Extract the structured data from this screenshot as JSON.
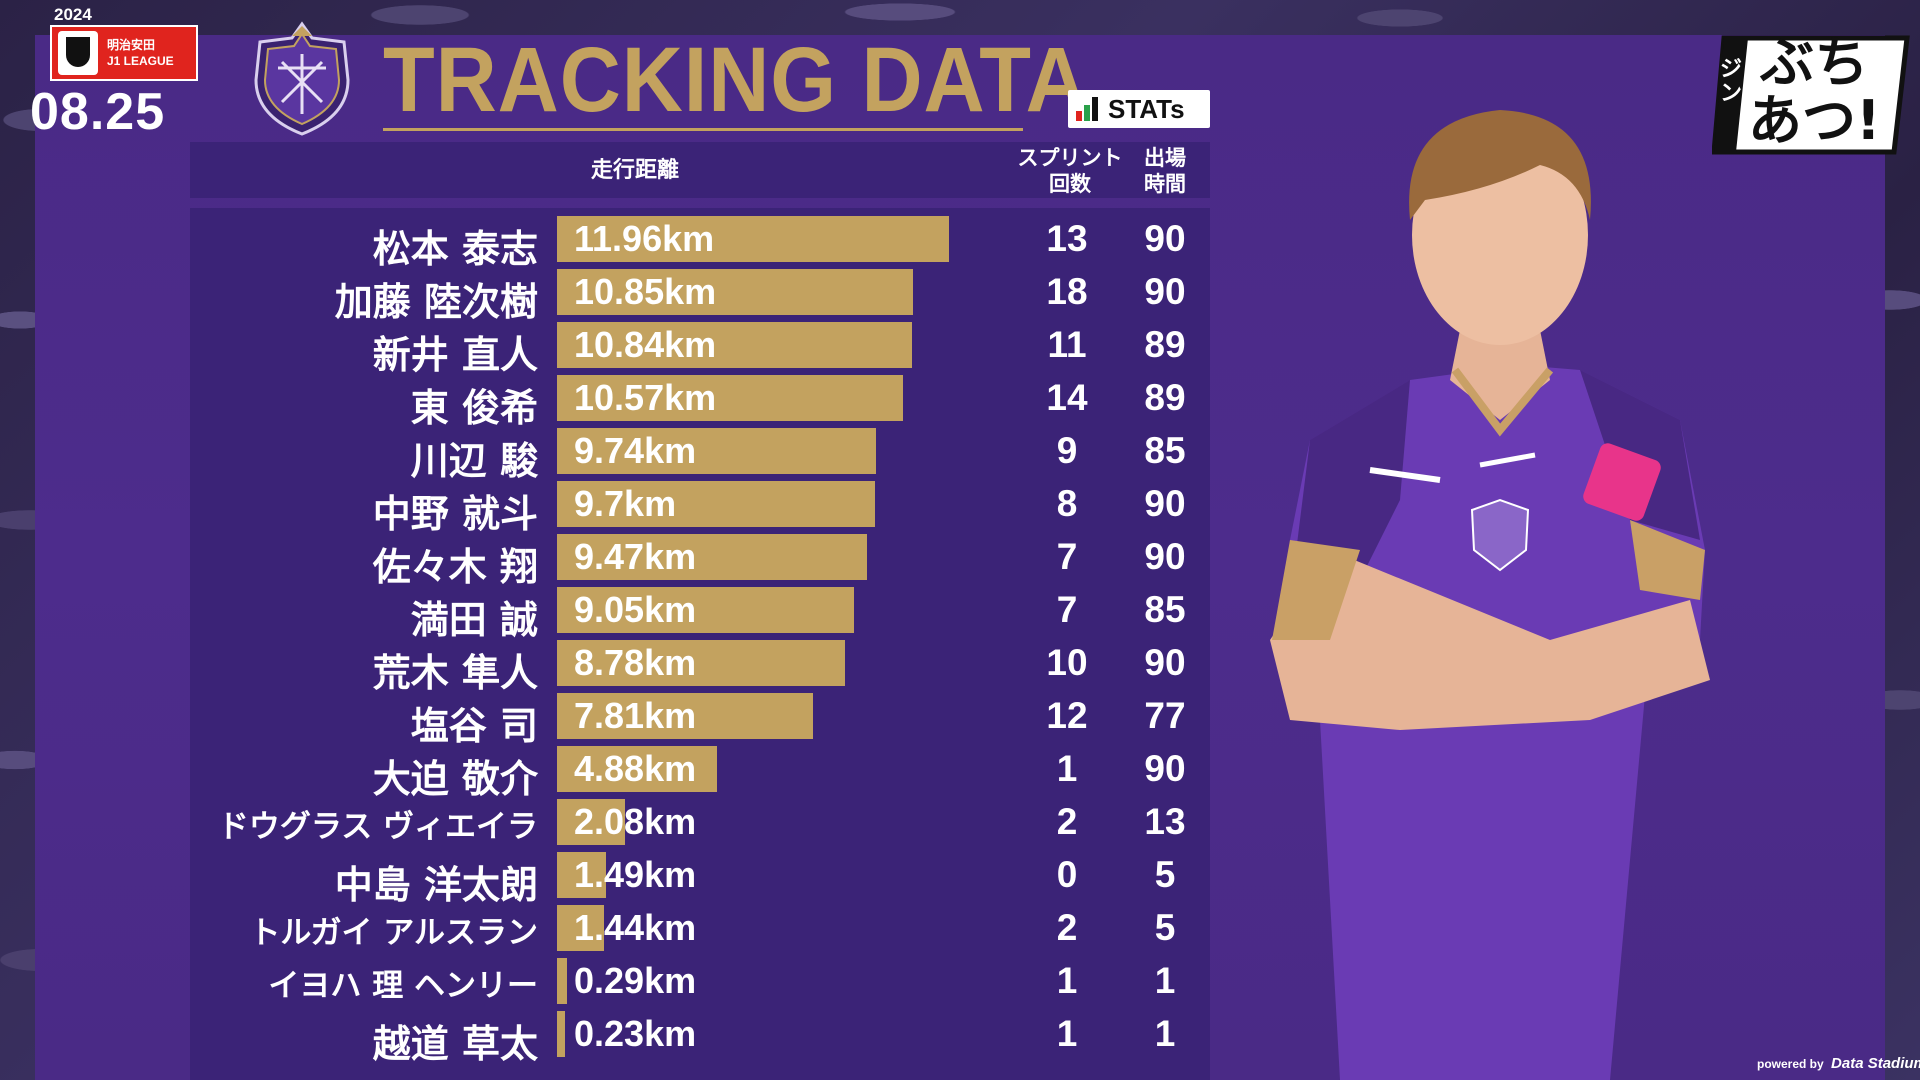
{
  "header": {
    "year": "2024",
    "sponsor": "明治安田",
    "league": "J1 LEAGUE",
    "date": "08.25",
    "title": "TRACKING DATA",
    "stats_logo": "STATs"
  },
  "table": {
    "col_distance": "走行距離",
    "col_sprint_1": "スプリント",
    "col_sprint_2": "回数",
    "col_time_1": "出場",
    "col_time_2": "時間",
    "rows": [
      {
        "name": "松本 泰志",
        "distance": "11.96km",
        "sprint": "13",
        "minutes": "90"
      },
      {
        "name": "加藤 陸次樹",
        "distance": "10.85km",
        "sprint": "18",
        "minutes": "90"
      },
      {
        "name": "新井 直人",
        "distance": "10.84km",
        "sprint": "11",
        "minutes": "89"
      },
      {
        "name": "東 俊希",
        "distance": "10.57km",
        "sprint": "14",
        "minutes": "89"
      },
      {
        "name": "川辺 駿",
        "distance": "9.74km",
        "sprint": "9",
        "minutes": "85"
      },
      {
        "name": "中野 就斗",
        "distance": "9.7km",
        "sprint": "8",
        "minutes": "90"
      },
      {
        "name": "佐々木 翔",
        "distance": "9.47km",
        "sprint": "7",
        "minutes": "90"
      },
      {
        "name": "満田 誠",
        "distance": "9.05km",
        "sprint": "7",
        "minutes": "85"
      },
      {
        "name": "荒木 隼人",
        "distance": "8.78km",
        "sprint": "10",
        "minutes": "90"
      },
      {
        "name": "塩谷 司",
        "distance": "7.81km",
        "sprint": "12",
        "minutes": "77"
      },
      {
        "name": "大迫 敬介",
        "distance": "4.88km",
        "sprint": "1",
        "minutes": "90"
      },
      {
        "name": "ドウグラス ヴィエイラ",
        "distance": "2.08km",
        "sprint": "2",
        "minutes": "13"
      },
      {
        "name": "中島 洋太朗",
        "distance": "1.49km",
        "sprint": "0",
        "minutes": "5"
      },
      {
        "name": "トルガイ アルスラン",
        "distance": "1.44km",
        "sprint": "2",
        "minutes": "5"
      },
      {
        "name": "イヨハ 理 ヘンリー",
        "distance": "0.29km",
        "sprint": "1",
        "minutes": "1"
      },
      {
        "name": "越道 草太",
        "distance": "0.23km",
        "sprint": "1",
        "minutes": "1"
      }
    ]
  },
  "chart_data": {
    "type": "bar",
    "orientation": "horizontal",
    "categories": [
      "松本 泰志",
      "加藤 陸次樹",
      "新井 直人",
      "東 俊希",
      "川辺 駿",
      "中野 就斗",
      "佐々木 翔",
      "満田 誠",
      "荒木 隼人",
      "塩谷 司",
      "大迫 敬介",
      "ドウグラス ヴィエイラ",
      "中島 洋太朗",
      "トルガイ アルスラン",
      "イヨハ 理 ヘンリー",
      "越道 草太"
    ],
    "values": [
      11.96,
      10.85,
      10.84,
      10.57,
      9.74,
      9.7,
      9.47,
      9.05,
      8.78,
      7.81,
      4.88,
      2.08,
      1.49,
      1.44,
      0.29,
      0.23
    ],
    "xlim": [
      0,
      14.5
    ],
    "bar_color": "#c3a25f"
  },
  "branding": {
    "right_logo_line1": "ぶち",
    "right_logo_line2": "あつ!",
    "right_logo_side": "ジン",
    "powered_prefix": "powered by",
    "powered_brand": "Data Stadium"
  },
  "colors": {
    "panel": "#4a2a86",
    "table_bg": "#3b2377",
    "gold": "#c3a25f",
    "jleague_red": "#e0241e"
  }
}
